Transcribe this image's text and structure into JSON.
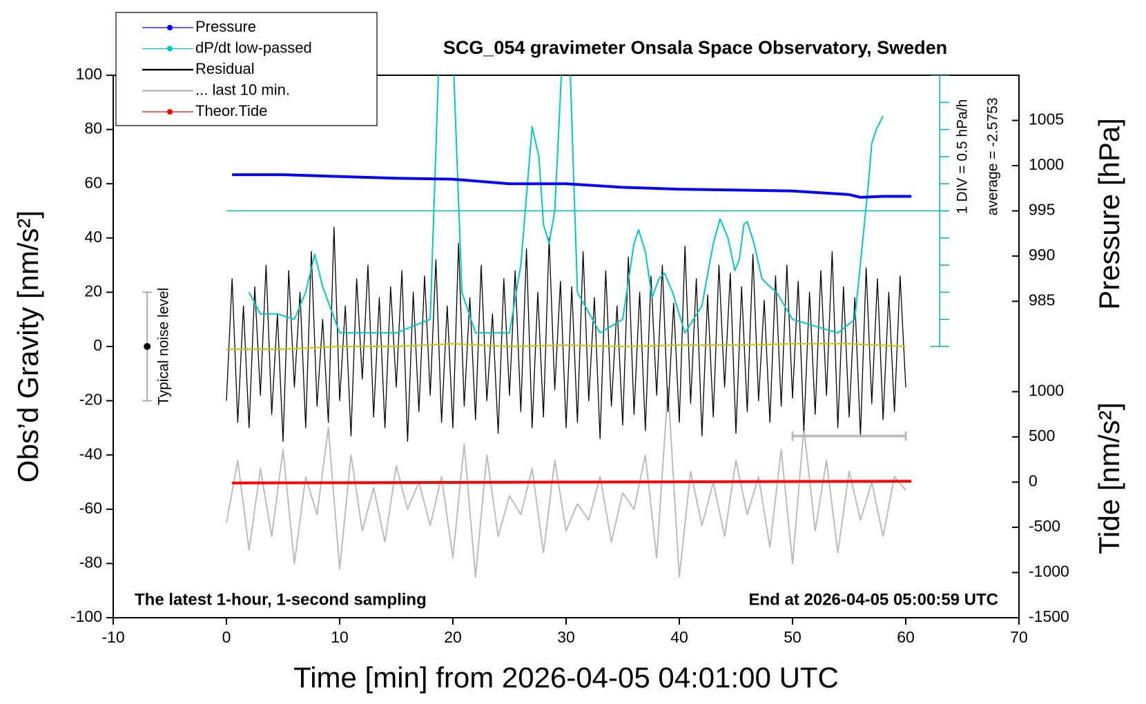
{
  "chart_data": {
    "type": "line",
    "title": "SCG_054 gravimeter Onsala Space Observatory, Sweden",
    "x_label": "Time [min] from 2026-04-05 04:01:00 UTC",
    "y_label": "Obs’d Gravity [nm/s²]",
    "y2_label": "Pressure [hPa]",
    "y3_label": "Tide [nm/s²]",
    "xlim": [
      -10,
      70
    ],
    "xticks": [
      -10,
      0,
      10,
      20,
      30,
      40,
      50,
      60,
      70
    ],
    "ylim": [
      -100,
      100
    ],
    "yticks": [
      -100,
      -80,
      -60,
      -40,
      -20,
      0,
      20,
      40,
      60,
      80,
      100
    ],
    "y2lim": [
      950,
      1010
    ],
    "y2ticks": [
      985,
      990,
      995,
      1000,
      1005
    ],
    "y3lim": [
      -1500,
      4500
    ],
    "y3ticks": [
      -1500,
      -1000,
      -500,
      0,
      500,
      1000
    ],
    "legend": "top-left",
    "series": [
      {
        "name": "Pressure",
        "color": "#0000ff",
        "axis": "y2",
        "marker": true,
        "x": [
          0.5,
          5,
          10,
          15,
          20,
          25,
          30,
          35,
          40,
          45,
          50,
          55,
          56,
          58,
          60.5
        ],
        "values": [
          999.0,
          999.0,
          998.8,
          998.6,
          998.5,
          998.0,
          998.0,
          997.6,
          997.4,
          997.3,
          997.2,
          996.8,
          996.5,
          996.6,
          996.6
        ]
      },
      {
        "name": "dP/dt low-passed",
        "color": "#00c8c8",
        "axis": "y",
        "marker": true,
        "x": [
          2,
          3,
          4.5,
          6,
          7,
          7.8,
          8.5,
          10,
          15,
          18,
          18.8,
          20,
          20.8,
          22,
          25,
          26,
          27,
          27.6,
          28,
          28.5,
          29,
          29.7,
          30.3,
          31,
          33,
          35,
          36,
          36.4,
          37,
          37.6,
          38.2,
          38.7,
          39.4,
          40.5,
          42,
          43,
          43.6,
          44.3,
          44.9,
          45.3,
          45.7,
          46,
          46.6,
          47.3,
          48,
          48.6,
          50,
          54,
          55.5,
          56.7,
          57,
          57.4,
          58
        ],
        "values": [
          20,
          12,
          12,
          10,
          20,
          34,
          22,
          5,
          5,
          10,
          110,
          110,
          20,
          5,
          5,
          30,
          81,
          70,
          45,
          38,
          50,
          110,
          110,
          20,
          5,
          10,
          38,
          43,
          35,
          18,
          25,
          27,
          20,
          5,
          15,
          38,
          47,
          40,
          28,
          32,
          45,
          46,
          38,
          25,
          22,
          20,
          10,
          5,
          10,
          60,
          75,
          80,
          85
        ]
      },
      {
        "name": "Residual",
        "color": "#000000",
        "axis": "y",
        "marker": false,
        "x": [
          0,
          0.5,
          1,
          1.5,
          2,
          2.5,
          3,
          3.5,
          4,
          4.5,
          5,
          5.5,
          6,
          6.5,
          7,
          7.5,
          8,
          8.5,
          9,
          9.5,
          10,
          10.5,
          11,
          11.5,
          12,
          12.5,
          13,
          13.5,
          14,
          14.5,
          15,
          15.5,
          16,
          16.5,
          17,
          17.5,
          18,
          18.5,
          19,
          19.5,
          20,
          20.5,
          21,
          21.5,
          22,
          22.5,
          23,
          23.5,
          24,
          24.5,
          25,
          25.5,
          26,
          26.5,
          27,
          27.5,
          28,
          28.5,
          29,
          29.5,
          30,
          30.5,
          31,
          31.5,
          32,
          32.5,
          33,
          33.5,
          34,
          34.5,
          35,
          35.5,
          36,
          36.5,
          37,
          37.5,
          38,
          38.5,
          39,
          39.5,
          40,
          40.5,
          41,
          41.5,
          42,
          42.5,
          43,
          43.5,
          44,
          44.5,
          45,
          45.5,
          46,
          46.5,
          47,
          47.5,
          48,
          48.5,
          49,
          49.5,
          50,
          50.5,
          51,
          51.5,
          52,
          52.5,
          53,
          53.5,
          54,
          54.5,
          55,
          55.5,
          56,
          56.5,
          57,
          57.5,
          58,
          58.5,
          59,
          59.5,
          60
        ],
        "values": [
          -20,
          25,
          -28,
          15,
          -30,
          22,
          -18,
          30,
          -25,
          12,
          -35,
          28,
          -15,
          20,
          -30,
          35,
          -22,
          10,
          -28,
          44,
          -20,
          15,
          -33,
          25,
          -12,
          30,
          -26,
          18,
          -30,
          22,
          -15,
          28,
          -35,
          20,
          -24,
          26,
          -18,
          32,
          -28,
          15,
          -30,
          38,
          -22,
          18,
          -27,
          30,
          -20,
          12,
          -32,
          25,
          -18,
          28,
          -24,
          36,
          -30,
          20,
          -26,
          40,
          -16,
          24,
          -30,
          22,
          -28,
          35,
          -20,
          18,
          -34,
          28,
          -22,
          15,
          -29,
          33,
          -25,
          20,
          -31,
          26,
          -18,
          30,
          -24,
          16,
          -28,
          37,
          -21,
          25,
          -33,
          19,
          -26,
          30,
          -15,
          27,
          -32,
          22,
          -24,
          34,
          -20,
          17,
          -28,
          26,
          -22,
          30,
          -19,
          24,
          -31,
          20,
          -25,
          28,
          -18,
          35,
          -30,
          22,
          -26,
          18,
          -33,
          29,
          -21,
          25,
          -27,
          20,
          -24,
          26,
          -15
        ]
      },
      {
        "name": "... last 10 min.",
        "color": "#bbbbbb",
        "axis": "y",
        "marker": false,
        "x": [
          0,
          1,
          2,
          3,
          4,
          5,
          6,
          7,
          8,
          9,
          10,
          11,
          12,
          13,
          14,
          15,
          16,
          17,
          18,
          19,
          20,
          21,
          22,
          23,
          24,
          25,
          26,
          27,
          28,
          29,
          30,
          31,
          32,
          33,
          34,
          35,
          36,
          37,
          38,
          39,
          40,
          41,
          42,
          43,
          44,
          45,
          46,
          47,
          48,
          49,
          50,
          51,
          52,
          53,
          54,
          55,
          56,
          57,
          58,
          59,
          60
        ],
        "values": [
          -65,
          -42,
          -75,
          -45,
          -70,
          -38,
          -80,
          -48,
          -62,
          -30,
          -82,
          -40,
          -68,
          -52,
          -72,
          -44,
          -60,
          -50,
          -66,
          -48,
          -78,
          -36,
          -85,
          -40,
          -70,
          -55,
          -62,
          -45,
          -76,
          -42,
          -68,
          -58,
          -64,
          -48,
          -72,
          -54,
          -60,
          -40,
          -78,
          -15,
          -85,
          -46,
          -66,
          -50,
          -70,
          -42,
          -62,
          -48,
          -74,
          -38,
          -80,
          -30,
          -68,
          -42,
          -76,
          -46,
          -64,
          -50,
          -70,
          -48,
          -53
        ]
      },
      {
        "name": "Theor.Tide",
        "color": "#ff0000",
        "axis": "y3",
        "marker": true,
        "x": [
          0.5,
          60.5
        ],
        "values": [
          -10,
          10
        ]
      }
    ],
    "smoothed": {
      "color": "#c8c800",
      "x": [
        0,
        5,
        10,
        15,
        20,
        25,
        30,
        35,
        40,
        45,
        50,
        55,
        60
      ],
      "values": [
        -1,
        -1,
        0,
        0,
        1,
        0,
        0.5,
        0,
        0.5,
        0.5,
        1,
        1,
        0
      ]
    },
    "noise_level": {
      "label": "Typical noise level",
      "x": -7,
      "y": 0,
      "range": [
        -20,
        20
      ]
    },
    "scale_bar": {
      "x": [
        50,
        60
      ],
      "y": -33
    },
    "dpdt_axis": {
      "x": 63,
      "ylim": [
        0,
        100
      ],
      "ticks": [
        0,
        10,
        20,
        30,
        40,
        50,
        60,
        70,
        80,
        90,
        100
      ],
      "zero_line": 50,
      "scale_label": "1 DIV = 0.5 hPa/h",
      "average_label": "average = -2.5753"
    },
    "notes": [
      "The latest 1-hour, 1-second sampling",
      "End at 2026-04-05 05:00:59 UTC"
    ]
  }
}
